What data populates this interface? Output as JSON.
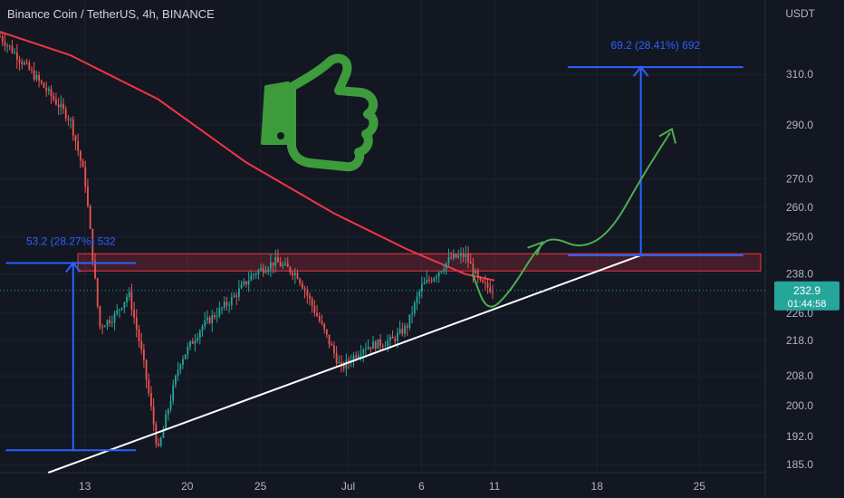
{
  "chart_data": {
    "type": "candlestick",
    "title": "Binance Coin / TetherUS, 4h, BINANCE",
    "y_unit": "USDT",
    "y_scale": "log",
    "ylim": [
      183,
      330
    ],
    "y_ticks": [
      "310.0",
      "290.0",
      "270.0",
      "260.0",
      "250.0",
      "238.0",
      "226.0",
      "218.0",
      "208.0",
      "200.0",
      "192.0",
      "185.0"
    ],
    "y_tick_values": [
      310,
      290,
      270,
      260,
      250,
      238,
      226,
      218,
      208,
      200,
      192,
      185
    ],
    "x_ticks": [
      "13",
      "20",
      "25",
      "Jul",
      "6",
      "11",
      "18",
      "25"
    ],
    "x_tick_days": [
      13,
      20,
      25,
      31,
      36,
      41,
      48,
      55
    ],
    "x_range_days": [
      7.2,
      59.5
    ],
    "last_price": "232.9",
    "last_price_value": 232.9,
    "countdown": "01:44:58",
    "colors": {
      "up": "#26a69a",
      "down": "#ef5350",
      "ma": "#f23645",
      "arrows": "#2962ff",
      "trend": "#ffffff",
      "path": "#4caf50",
      "zone": "#f23645",
      "thumb": "#3e9b3c"
    },
    "key_prices": [
      {
        "day": 7.2,
        "price": 326
      },
      {
        "day": 12,
        "price": 292
      },
      {
        "day": 13,
        "price": 270
      },
      {
        "day": 13.5,
        "price": 245
      },
      {
        "day": 14,
        "price": 222
      },
      {
        "day": 15,
        "price": 225
      },
      {
        "day": 16,
        "price": 232
      },
      {
        "day": 17,
        "price": 212
      },
      {
        "day": 18,
        "price": 188
      },
      {
        "day": 19.5,
        "price": 212
      },
      {
        "day": 21,
        "price": 222
      },
      {
        "day": 23,
        "price": 230
      },
      {
        "day": 24.5,
        "price": 238
      },
      {
        "day": 26,
        "price": 242
      },
      {
        "day": 27.5,
        "price": 238
      },
      {
        "day": 29,
        "price": 224
      },
      {
        "day": 30.5,
        "price": 210
      },
      {
        "day": 32,
        "price": 216
      },
      {
        "day": 34,
        "price": 218
      },
      {
        "day": 35,
        "price": 222
      },
      {
        "day": 36,
        "price": 234
      },
      {
        "day": 37,
        "price": 238
      },
      {
        "day": 38,
        "price": 243
      },
      {
        "day": 39,
        "price": 244
      },
      {
        "day": 40,
        "price": 235
      },
      {
        "day": 41,
        "price": 232.9
      }
    ],
    "moving_average": [
      {
        "day": 7.2,
        "price": 328
      },
      {
        "day": 12,
        "price": 318
      },
      {
        "day": 18,
        "price": 300
      },
      {
        "day": 24,
        "price": 276
      },
      {
        "day": 30,
        "price": 258
      },
      {
        "day": 35,
        "price": 246
      },
      {
        "day": 39,
        "price": 238
      },
      {
        "day": 41,
        "price": 236
      }
    ],
    "resistance_zone": {
      "top": 244.5,
      "bottom": 239,
      "from_day": 7.2,
      "to_day": 59.5
    },
    "trendline": [
      {
        "day": 10.5,
        "price": 183
      },
      {
        "day": 51,
        "price": 244
      }
    ],
    "measures": [
      {
        "label": "53.2 (28.27%) 532",
        "from_day": 7.6,
        "to_day": 16.5,
        "base_day": 12.2,
        "low": 188.5,
        "high": 241.5
      },
      {
        "label": "69.2 (28.41%) 692",
        "from_day": 46,
        "to_day": 58,
        "base_day": 51,
        "low": 244,
        "high": 313
      }
    ],
    "projection": [
      {
        "day": 39.5,
        "price": 238
      },
      {
        "day": 40.5,
        "price": 226
      },
      {
        "day": 42,
        "price": 232
      },
      {
        "day": 44,
        "price": 247
      },
      {
        "day": 45,
        "price": 250
      },
      {
        "day": 47,
        "price": 246
      },
      {
        "day": 49,
        "price": 252
      },
      {
        "day": 51,
        "price": 270
      },
      {
        "day": 53,
        "price": 287
      }
    ]
  }
}
